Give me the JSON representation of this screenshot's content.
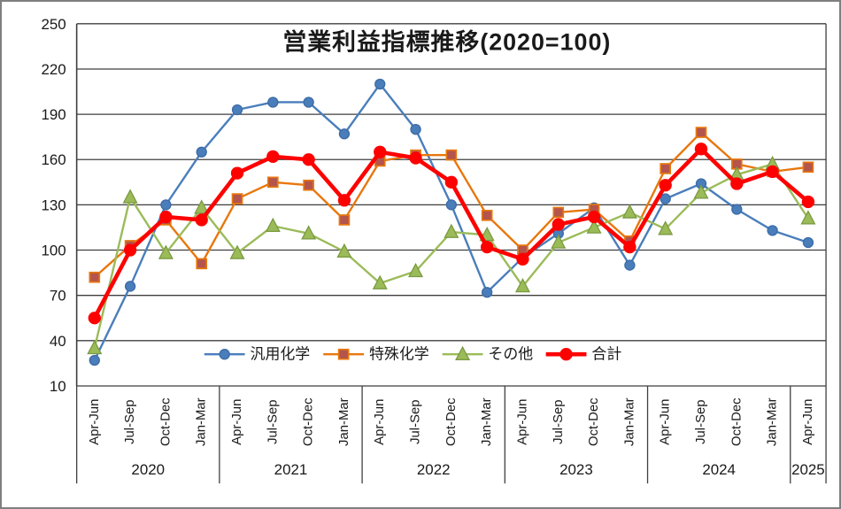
{
  "chart_data": {
    "type": "line",
    "title": "営業利益指標推移(2020=100)",
    "ylim": [
      10,
      250
    ],
    "y_ticks": [
      250,
      220,
      190,
      160,
      130,
      100,
      70,
      40,
      10
    ],
    "grid": "horizontal-major",
    "legend_position": "bottom-center-inside",
    "years": [
      {
        "label": "2020",
        "quarters": [
          "Apr-Jun",
          "Jul-Sep",
          "Oct-Dec",
          "Jan-Mar"
        ]
      },
      {
        "label": "2021",
        "quarters": [
          "Apr-Jun",
          "Jul-Sep",
          "Oct-Dec",
          "Jan-Mar"
        ]
      },
      {
        "label": "2022",
        "quarters": [
          "Apr-Jun",
          "Jul-Sep",
          "Oct-Dec",
          "Jan-Mar"
        ]
      },
      {
        "label": "2023",
        "quarters": [
          "Apr-Jun",
          "Jul-Sep",
          "Oct-Dec",
          "Jan-Mar"
        ]
      },
      {
        "label": "2024",
        "quarters": [
          "Apr-Jun",
          "Jul-Sep",
          "Oct-Dec",
          "Jan-Mar"
        ]
      },
      {
        "label": "2025",
        "quarters": [
          "Apr-Jun"
        ]
      }
    ],
    "series": [
      {
        "name": "汎用化学",
        "marker": "circle",
        "line_color": "#4a7ebb",
        "marker_fill": "#4a7ebb",
        "marker_stroke": "#3d6ca8",
        "line_width": 2.4,
        "marker_size": 11,
        "values": [
          27,
          76,
          130,
          165,
          193,
          198,
          198,
          177,
          210,
          180,
          130,
          72,
          95,
          111,
          128,
          90,
          134,
          144,
          127,
          113,
          105
        ]
      },
      {
        "name": "特殊化学",
        "marker": "square",
        "line_color": "#e8770d",
        "marker_fill": "#b3544d",
        "marker_stroke": "#e8770d",
        "line_width": 2.4,
        "marker_size": 11,
        "values": [
          82,
          103,
          120,
          91,
          134,
          145,
          143,
          120,
          159,
          163,
          163,
          123,
          100,
          125,
          127,
          106,
          154,
          178,
          157,
          152,
          155
        ]
      },
      {
        "name": "その他",
        "marker": "triangle",
        "line_color": "#9bbb59",
        "marker_fill": "#9bbb59",
        "marker_stroke": "#7a9a40",
        "line_width": 2.4,
        "marker_size": 13,
        "values": [
          35,
          135,
          98,
          128,
          98,
          116,
          111,
          99,
          78,
          86,
          112,
          110,
          76,
          105,
          115,
          125,
          114,
          138,
          150,
          157,
          121
        ]
      },
      {
        "name": "合計",
        "marker": "circle",
        "line_color": "#fe0000",
        "marker_fill": "#fe0000",
        "marker_stroke": "#fe0000",
        "line_width": 4.6,
        "marker_size": 13,
        "values": [
          55,
          100,
          122,
          120,
          151,
          162,
          160,
          133,
          165,
          161,
          145,
          102,
          94,
          117,
          122,
          102,
          143,
          167,
          144,
          152,
          132
        ]
      }
    ]
  }
}
